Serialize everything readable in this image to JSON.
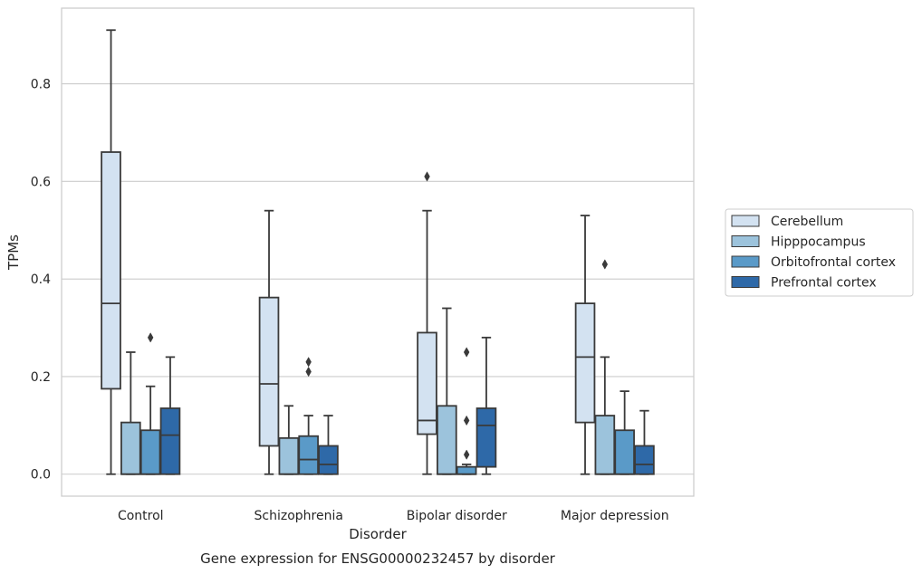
{
  "chart_data": {
    "type": "boxplot",
    "title": "",
    "caption": "Gene expression for ENSG00000232457 by disorder",
    "xlabel": "Disorder",
    "ylabel": "TPMs",
    "ylim": [
      -0.045,
      0.955
    ],
    "yticks": [
      0.0,
      0.2,
      0.4,
      0.6,
      0.8
    ],
    "ytick_labels": [
      "0.0",
      "0.2",
      "0.4",
      "0.6",
      "0.8"
    ],
    "grid": "horizontal",
    "legend_position": "right",
    "categories": [
      "Control",
      "Schizophrenia",
      "Bipolar disorder",
      "Major depression"
    ],
    "series": [
      {
        "name": "Cerebellum",
        "color": "#d3e2f1",
        "boxes": [
          {
            "whislo": 0.0,
            "q1": 0.175,
            "med": 0.35,
            "q3": 0.66,
            "whishi": 0.91,
            "fliers": []
          },
          {
            "whislo": 0.0,
            "q1": 0.058,
            "med": 0.185,
            "q3": 0.362,
            "whishi": 0.54,
            "fliers": []
          },
          {
            "whislo": 0.0,
            "q1": 0.082,
            "med": 0.11,
            "q3": 0.29,
            "whishi": 0.54,
            "fliers": [
              0.61
            ]
          },
          {
            "whislo": 0.0,
            "q1": 0.106,
            "med": 0.24,
            "q3": 0.35,
            "whishi": 0.53,
            "fliers": []
          }
        ]
      },
      {
        "name": "Hipppocampus",
        "color": "#9cc3dc",
        "boxes": [
          {
            "whislo": 0.0,
            "q1": 0.0,
            "med": 0.0,
            "q3": 0.106,
            "whishi": 0.25,
            "fliers": []
          },
          {
            "whislo": 0.0,
            "q1": 0.0,
            "med": 0.0,
            "q3": 0.074,
            "whishi": 0.14,
            "fliers": []
          },
          {
            "whislo": 0.0,
            "q1": 0.0,
            "med": 0.0,
            "q3": 0.14,
            "whishi": 0.34,
            "fliers": []
          },
          {
            "whislo": 0.0,
            "q1": 0.0,
            "med": 0.0,
            "q3": 0.12,
            "whishi": 0.24,
            "fliers": [
              0.43
            ]
          }
        ]
      },
      {
        "name": "Orbitofrontal cortex",
        "color": "#5a9ac8",
        "boxes": [
          {
            "whislo": 0.0,
            "q1": 0.0,
            "med": 0.0,
            "q3": 0.09,
            "whishi": 0.18,
            "fliers": [
              0.28
            ]
          },
          {
            "whislo": 0.0,
            "q1": 0.0,
            "med": 0.03,
            "q3": 0.078,
            "whishi": 0.12,
            "fliers": [
              0.21,
              0.23
            ]
          },
          {
            "whislo": 0.0,
            "q1": 0.0,
            "med": 0.0,
            "q3": 0.015,
            "whishi": 0.02,
            "fliers": [
              0.04,
              0.11,
              0.25
            ]
          },
          {
            "whislo": 0.0,
            "q1": 0.0,
            "med": 0.0,
            "q3": 0.09,
            "whishi": 0.17,
            "fliers": []
          }
        ]
      },
      {
        "name": "Prefrontal cortex",
        "color": "#2e69a8",
        "boxes": [
          {
            "whislo": 0.0,
            "q1": 0.0,
            "med": 0.08,
            "q3": 0.135,
            "whishi": 0.24,
            "fliers": []
          },
          {
            "whislo": 0.0,
            "q1": 0.0,
            "med": 0.02,
            "q3": 0.058,
            "whishi": 0.12,
            "fliers": []
          },
          {
            "whislo": 0.0,
            "q1": 0.015,
            "med": 0.1,
            "q3": 0.135,
            "whishi": 0.28,
            "fliers": []
          },
          {
            "whislo": 0.0,
            "q1": 0.0,
            "med": 0.02,
            "q3": 0.058,
            "whishi": 0.13,
            "fliers": []
          }
        ]
      }
    ]
  }
}
